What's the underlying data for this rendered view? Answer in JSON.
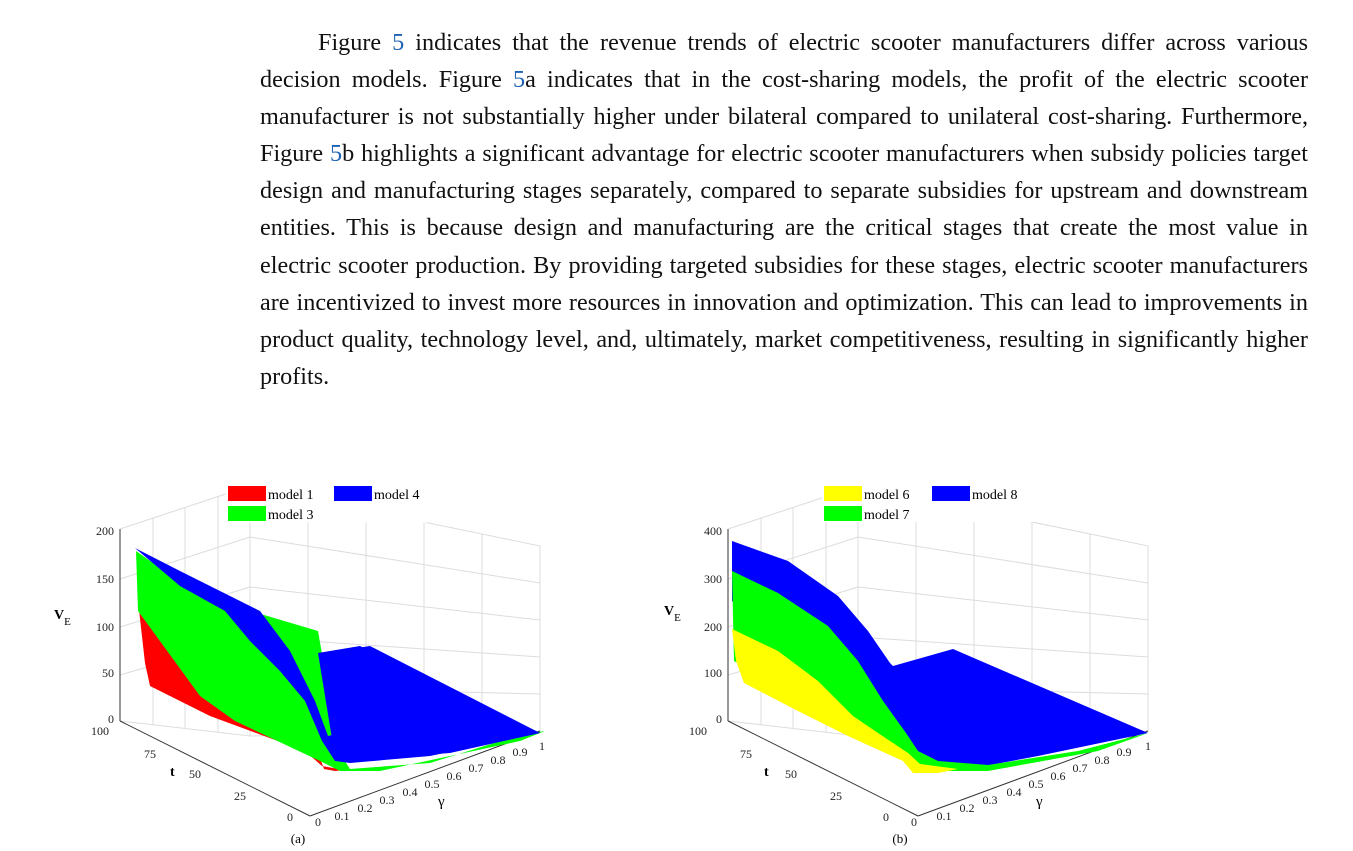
{
  "paragraph": {
    "s1": "indicates that the revenue trends of electric scooter manufacturers differ across various decision models. Figure ",
    "s2": "a indicates that in the cost-sharing models, the profit of the electric scooter manufacturer is not substantially higher under bilateral compared to unilateral cost-sharing. Furthermore, Figure ",
    "s3": "b highlights a significant advantage for electric scooter manufacturers when subsidy policies target design and manufacturing stages separately, compared to separate subsidies for upstream and downstream entities. This is because design and manufacturing are the critical stages that create the most value in electric scooter production. By providing targeted subsidies for these stages, electric scooter manufacturers are incentivized to invest more resources in innovation and optimization. This can lead to improvements in product quality, technology level, and, ultimately, market competitiveness, resulting in significantly higher profits.",
    "fig_word": "Figure",
    "fig_ref": "5"
  },
  "colors": {
    "red": "#ff0000",
    "green": "#00ff00",
    "blue": "#0000ff",
    "yellow": "#ffff00"
  },
  "chart_data": [
    {
      "type": "surface",
      "panel_label": "(a)",
      "zlabel": "V",
      "zlabel_sub": "E",
      "xlabel": "γ",
      "ylabel": "t",
      "z_ticks": [
        "0",
        "50",
        "100",
        "150",
        "200"
      ],
      "t_ticks": [
        "0",
        "25",
        "50",
        "75",
        "100"
      ],
      "gamma_ticks": [
        "0",
        "0.1",
        "0.2",
        "0.3",
        "0.4",
        "0.5",
        "0.6",
        "0.7",
        "0.8",
        "0.9",
        "1"
      ],
      "zlim": [
        0,
        200
      ],
      "tlim": [
        0,
        100
      ],
      "gammalim": [
        0,
        1
      ],
      "legend": [
        "model 1",
        "model 4",
        "model 3"
      ],
      "series": [
        {
          "name": "model 1",
          "color": "red",
          "z_at_gamma0_t100": 125,
          "z_at_gamma0_t0": 40
        },
        {
          "name": "model 3",
          "color": "green",
          "z_at_gamma0_t100": 178,
          "z_at_gamma0_t0": 110
        },
        {
          "name": "model 4",
          "color": "blue",
          "z_at_gamma0_t100": 185,
          "z_at_gamma1_t0": 0
        }
      ]
    },
    {
      "type": "surface",
      "panel_label": "(b)",
      "zlabel": "V",
      "zlabel_sub": "E",
      "xlabel": "γ",
      "ylabel": "t",
      "z_ticks": [
        "0",
        "100",
        "200",
        "300",
        "400"
      ],
      "t_ticks": [
        "0",
        "25",
        "50",
        "75",
        "100"
      ],
      "gamma_ticks": [
        "0",
        "0.1",
        "0.2",
        "0.3",
        "0.4",
        "0.5",
        "0.6",
        "0.7",
        "0.8",
        "0.9",
        "1"
      ],
      "zlim": [
        0,
        400
      ],
      "tlim": [
        0,
        100
      ],
      "gammalim": [
        0,
        1
      ],
      "legend": [
        "model 6",
        "model 8",
        "model 7"
      ],
      "series": [
        {
          "name": "model 6",
          "color": "yellow",
          "z_at_gamma0_t100": 190,
          "z_at_gamma0_t0": 70
        },
        {
          "name": "model 7",
          "color": "green",
          "z_at_gamma0_t100": 320,
          "z_at_gamma0_t0": 150
        },
        {
          "name": "model 8",
          "color": "blue",
          "z_at_gamma0_t100": 385,
          "z_at_gamma1_t0": 0
        }
      ]
    }
  ]
}
